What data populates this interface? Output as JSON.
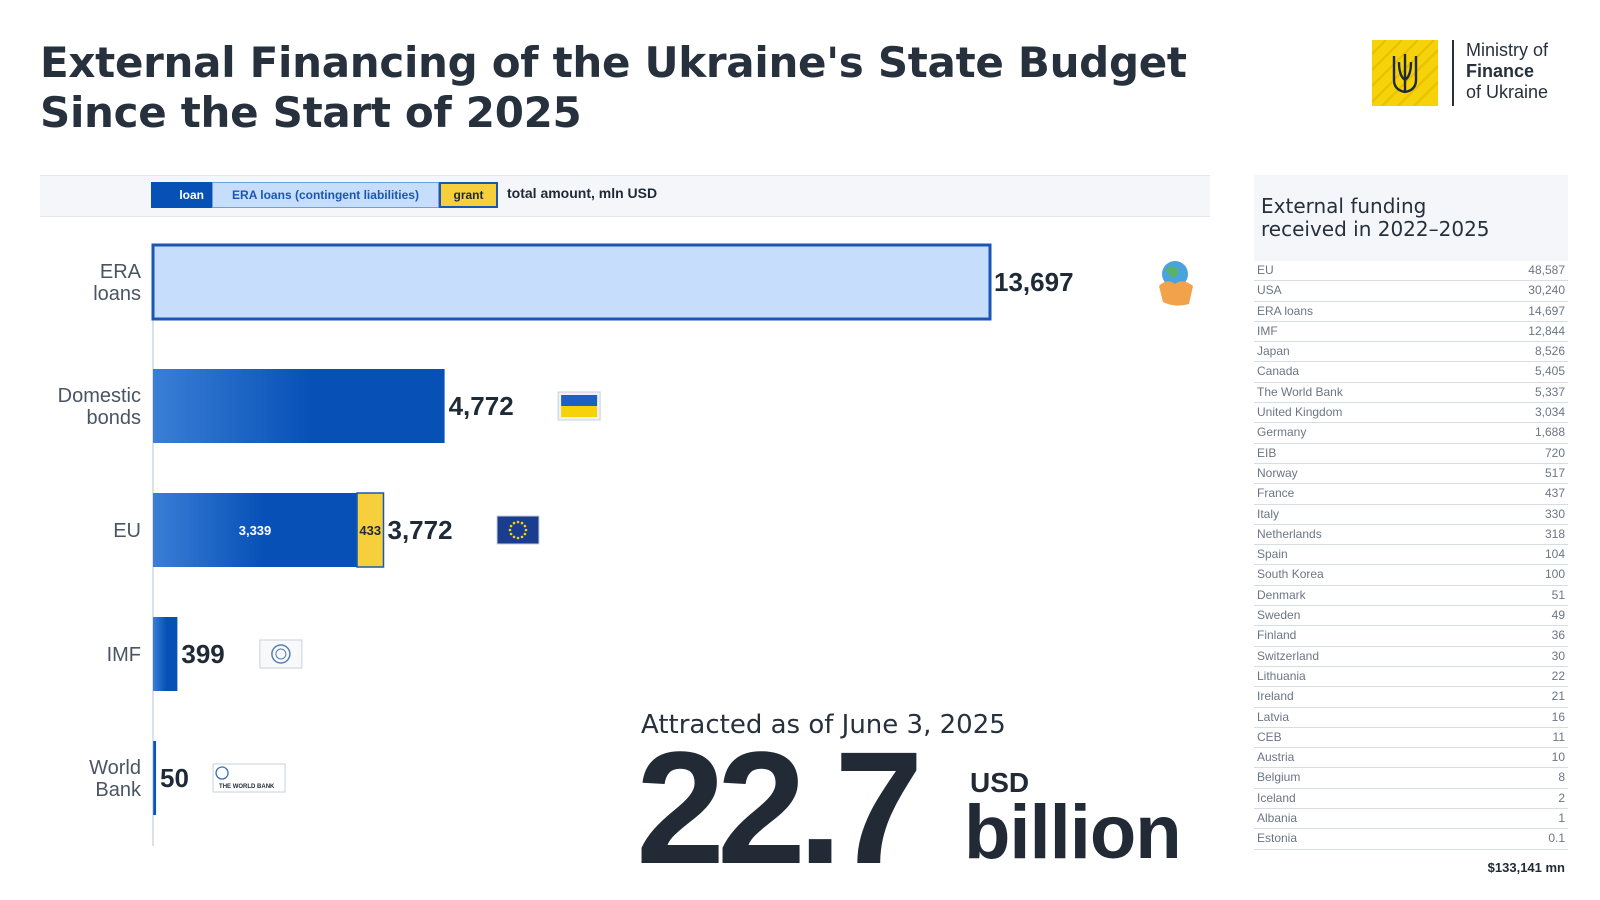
{
  "header": {
    "title_line1": "External Financing of the Ukraine's State Budget",
    "title_line2": "Since the Start of 2025"
  },
  "logo": {
    "line1": "Ministry of",
    "line2": "Finance",
    "line3": "of Ukraine"
  },
  "legend": {
    "loan": "loan",
    "era": "ERA loans (contingent liabilities)",
    "grant": "grant",
    "total": "total amount, mln USD"
  },
  "colors": {
    "loan": "#0650b6",
    "era": "#c6defb",
    "grant": "#f6cf3c",
    "accent": "#f6d20a"
  },
  "chart_data": {
    "type": "bar",
    "orientation": "horizontal",
    "stacked": true,
    "unit": "mln USD",
    "categories": [
      {
        "lines": [
          "ERA",
          "loans"
        ],
        "total": "13,697",
        "icon": "handshake-globe-icon",
        "segments": [
          {
            "type": "era",
            "value": 13697
          }
        ]
      },
      {
        "lines": [
          "Domestic",
          "bonds"
        ],
        "total": "4,772",
        "icon": "ukraine-flag-icon",
        "segments": [
          {
            "type": "loan",
            "value": 4772
          }
        ]
      },
      {
        "lines": [
          "EU"
        ],
        "total": "3,772",
        "icon": "eu-flag-icon",
        "segments": [
          {
            "type": "loan",
            "value": 3339,
            "label": "3,339"
          },
          {
            "type": "grant",
            "value": 433,
            "label": "433"
          }
        ]
      },
      {
        "lines": [
          "IMF"
        ],
        "total": "399",
        "icon": "imf-logo-icon",
        "segments": [
          {
            "type": "loan",
            "value": 399
          }
        ]
      },
      {
        "lines": [
          "World",
          "Bank"
        ],
        "total": "50",
        "icon": "world-bank-logo-icon",
        "icon_text": "THE WORLD BANK",
        "segments": [
          {
            "type": "loan",
            "value": 50
          }
        ]
      }
    ],
    "xlim": [
      0,
      13697
    ],
    "grid": false,
    "legend_placement": "top"
  },
  "summary": {
    "caption": "Attracted as of June 3, 2025",
    "amount": "22.7",
    "currency": "USD",
    "unit": "billion"
  },
  "panel": {
    "title_line1": "External funding",
    "title_line2": "received in 2022–2025",
    "rows": [
      {
        "name": "EU",
        "value": "48,587"
      },
      {
        "name": "USA",
        "value": "30,240"
      },
      {
        "name": "ERA loans",
        "value": "14,697"
      },
      {
        "name": "IMF",
        "value": "12,844"
      },
      {
        "name": "Japan",
        "value": "8,526"
      },
      {
        "name": "Canada",
        "value": "5,405"
      },
      {
        "name": "The World Bank",
        "value": "5,337"
      },
      {
        "name": "United Kingdom",
        "value": "3,034"
      },
      {
        "name": "Germany",
        "value": "1,688"
      },
      {
        "name": "EIB",
        "value": "720"
      },
      {
        "name": "Norway",
        "value": "517"
      },
      {
        "name": "France",
        "value": "437"
      },
      {
        "name": "Italy",
        "value": "330"
      },
      {
        "name": "Netherlands",
        "value": "318"
      },
      {
        "name": "Spain",
        "value": "104"
      },
      {
        "name": "South Korea",
        "value": "100"
      },
      {
        "name": "Denmark",
        "value": "51"
      },
      {
        "name": "Sweden",
        "value": "49"
      },
      {
        "name": "Finland",
        "value": "36"
      },
      {
        "name": "Switzerland",
        "value": "30"
      },
      {
        "name": "Lithuania",
        "value": "22"
      },
      {
        "name": "Ireland",
        "value": "21"
      },
      {
        "name": "Latvia",
        "value": "16"
      },
      {
        "name": "CEB",
        "value": "11"
      },
      {
        "name": "Austria",
        "value": "10"
      },
      {
        "name": "Belgium",
        "value": "8"
      },
      {
        "name": "Iceland",
        "value": "2"
      },
      {
        "name": "Albania",
        "value": "1"
      },
      {
        "name": "Estonia",
        "value": "0.1"
      }
    ],
    "total": "$133,141 mn"
  }
}
